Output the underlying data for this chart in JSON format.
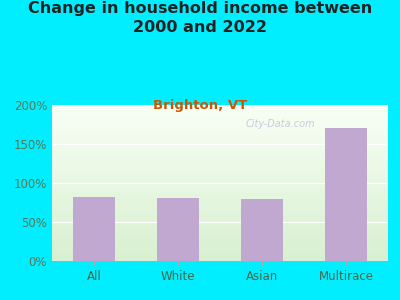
{
  "title": "Change in household income between\n2000 and 2022",
  "subtitle": "Brighton, VT",
  "categories": [
    "All",
    "White",
    "Asian",
    "Multirace"
  ],
  "values": [
    82,
    81,
    79,
    170
  ],
  "bar_color": "#c0a8d0",
  "title_fontsize": 11.5,
  "subtitle_fontsize": 9.5,
  "subtitle_color": "#cc5500",
  "background_outer": "#00eeff",
  "ylim": [
    0,
    200
  ],
  "yticks": [
    0,
    50,
    100,
    150,
    200
  ],
  "ytick_labels": [
    "0%",
    "50%",
    "100%",
    "150%",
    "200%"
  ],
  "watermark": "City-Data.com",
  "tick_color": "#557755",
  "label_color": "#446644"
}
